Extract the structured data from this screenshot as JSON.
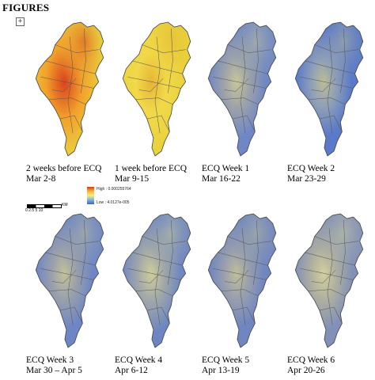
{
  "header": {
    "title": "FIGURES",
    "expand_symbol": "+"
  },
  "legend": {
    "high": "High : 0.000255764",
    "low": "Low : 4.0127e-005",
    "scale_ticks": "0   2.5   5       10",
    "unit": "KM"
  },
  "panels": [
    {
      "line1": "2 weeks before ECQ",
      "line2": "Mar 2-8",
      "palette": {
        "base": "#e8d640",
        "mid": "#f2a12b",
        "hot": "#d9431f"
      },
      "intensity": 1.0
    },
    {
      "line1": "1 week before ECQ",
      "line2": "Mar 9-15",
      "palette": {
        "base": "#e9d23c",
        "mid": "#f1d94a",
        "hot": "#e6b534"
      },
      "intensity": 0.6
    },
    {
      "line1": "ECQ Week 1",
      "line2": "Mar 16-22",
      "palette": {
        "base": "#6f87c4",
        "mid": "#9ea3a8",
        "hot": "#c8c59a"
      },
      "intensity": 0.3
    },
    {
      "line1": "ECQ Week 2",
      "line2": "Mar 23-29",
      "palette": {
        "base": "#5a79c9",
        "mid": "#8fa0b7",
        "hot": "#bdbc95"
      },
      "intensity": 0.25
    },
    {
      "line1": "ECQ Week 3",
      "line2": "Mar  30 – Apr 5",
      "palette": {
        "base": "#6f86c4",
        "mid": "#9aa1aa",
        "hot": "#c3c29a"
      },
      "intensity": 0.25
    },
    {
      "line1": "ECQ Week 4",
      "line2": "Apr 6-12",
      "palette": {
        "base": "#6d86c2",
        "mid": "#a2a8a8",
        "hot": "#cfcd9a"
      },
      "intensity": 0.35
    },
    {
      "line1": "ECQ Week 5",
      "line2": "Apr 13-19",
      "palette": {
        "base": "#7086c0",
        "mid": "#9aa0ac",
        "hot": "#bfbf99"
      },
      "intensity": 0.2
    },
    {
      "line1": "ECQ Week 6",
      "line2": "Apr 20-26",
      "palette": {
        "base": "#8190b8",
        "mid": "#b0b09f",
        "hot": "#d3cf9c"
      },
      "intensity": 0.3
    }
  ]
}
